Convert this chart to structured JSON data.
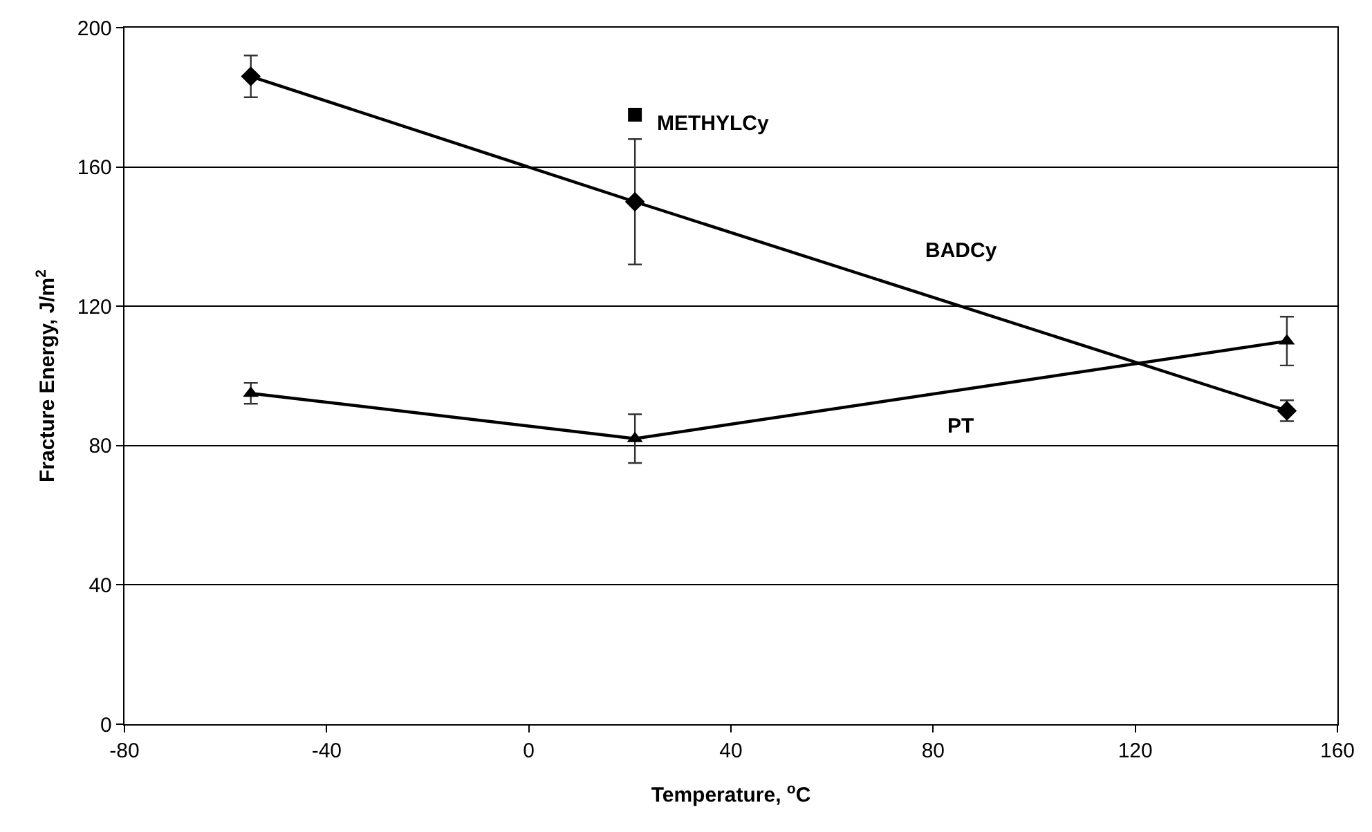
{
  "chart_data": {
    "type": "line",
    "xlabel": "Temperature, $^{o}$C",
    "ylabel": "Fracture Energy, J/m$^{2}$",
    "xlim": [
      -80,
      160
    ],
    "xticks": [
      -80,
      -40,
      0,
      40,
      80,
      120,
      160
    ],
    "ylim": [
      0,
      200
    ],
    "yticks": [
      0,
      40,
      80,
      120,
      160,
      200
    ],
    "grid": "y",
    "legend": false,
    "series": [
      {
        "name": "BADCy",
        "color": "#000000",
        "marker": "diamond",
        "x": [
          -55,
          21,
          150
        ],
        "values": [
          186,
          150,
          90
        ],
        "errors": [
          6,
          18,
          3
        ]
      },
      {
        "name": "PT",
        "color": "#000000",
        "marker": "triangle",
        "x": [
          -55,
          21,
          150
        ],
        "values": [
          95,
          82,
          110
        ],
        "errors": [
          3,
          7,
          7
        ]
      },
      {
        "name": "METHYLCy",
        "type": "scatter",
        "color": "#000000",
        "marker": "square",
        "x": [
          21
        ],
        "values": [
          175
        ]
      }
    ]
  }
}
